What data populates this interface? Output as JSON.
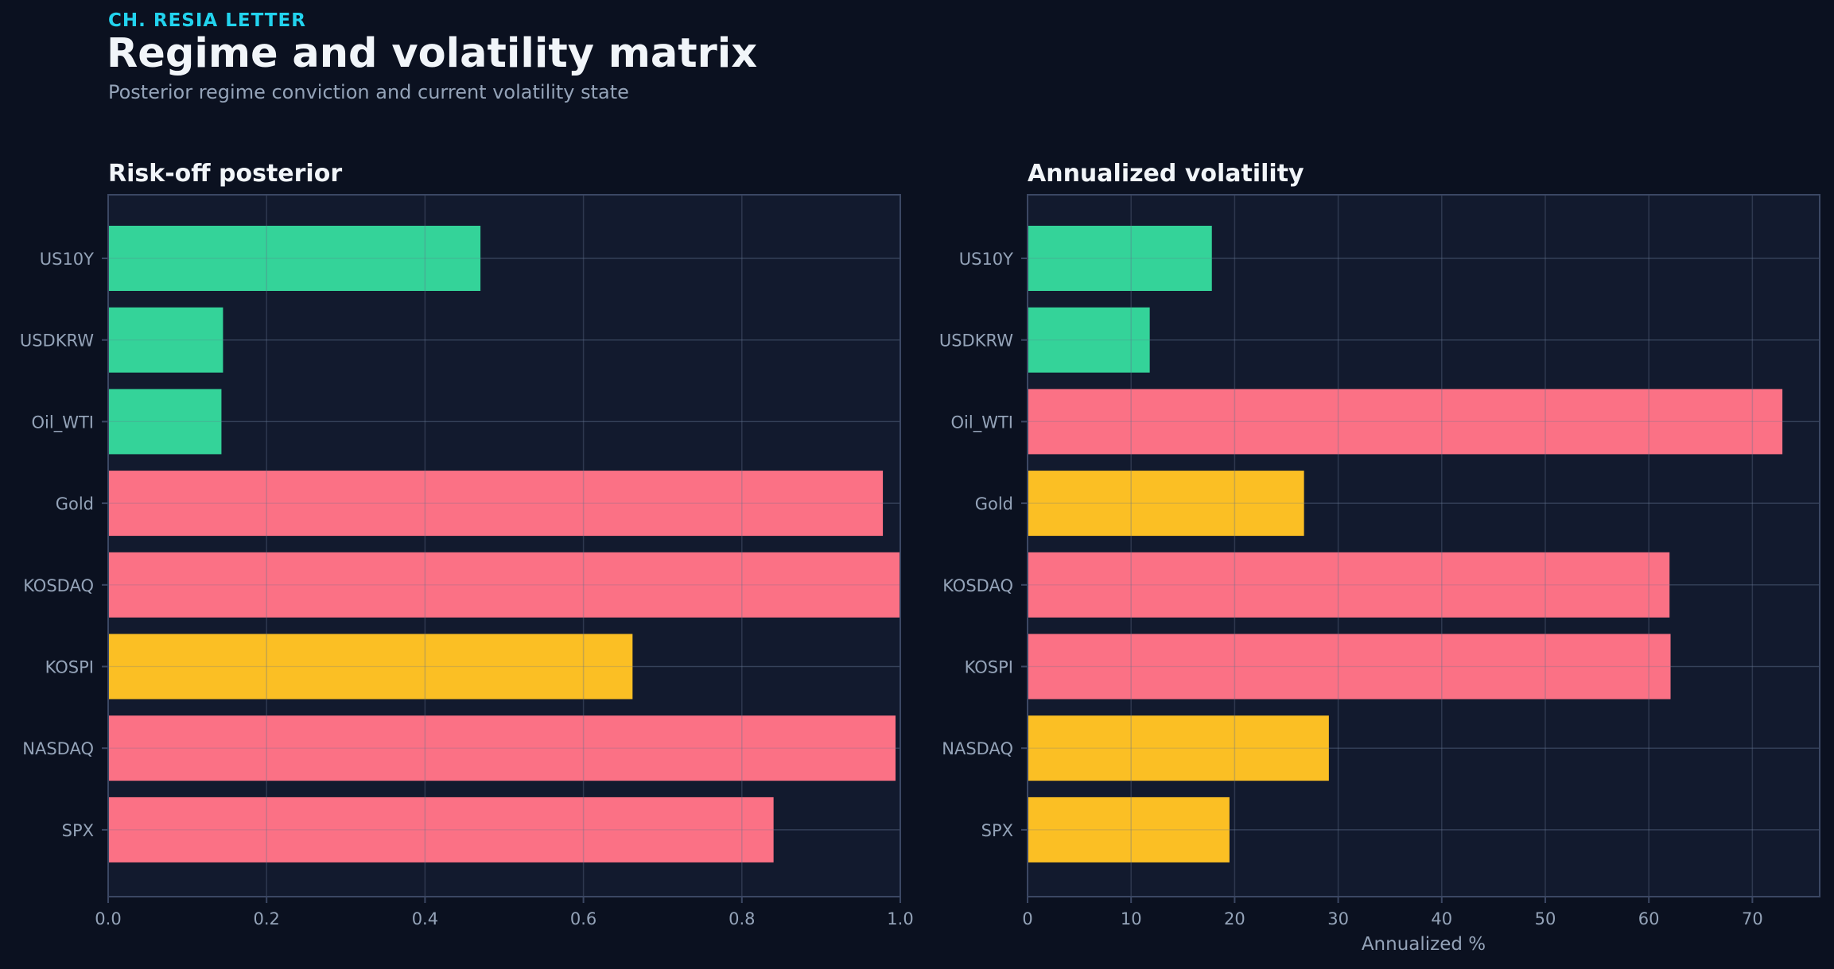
{
  "header": {
    "kicker": "CH. RESIA LETTER",
    "title": "Regime and volatility matrix",
    "subtitle": "Posterior regime conviction and current volatility state"
  },
  "colors": {
    "background": "#0b1120",
    "plot_bg": "#121a2e",
    "green": "#34d399",
    "red": "#fb7185",
    "yellow": "#fbbf24",
    "grid": "#27324a",
    "axis": "#3b4763",
    "tick_text": "#94a3b8"
  },
  "chart_data": [
    {
      "type": "bar",
      "orientation": "horizontal",
      "title": "Risk-off posterior",
      "xlabel": "",
      "ylabel": "",
      "categories": [
        "US10Y",
        "USDKRW",
        "Oil_WTI",
        "Gold",
        "KOSDAQ",
        "KOSPI",
        "NASDAQ",
        "SPX"
      ],
      "values": [
        0.47,
        0.145,
        0.143,
        0.978,
        1.0,
        0.662,
        0.994,
        0.84
      ],
      "bar_colors": [
        "green",
        "green",
        "green",
        "red",
        "red",
        "yellow",
        "red",
        "red"
      ],
      "xlim": [
        0,
        1.0
      ],
      "xticks": [
        "0.0",
        "0.2",
        "0.4",
        "0.6",
        "0.8",
        "1.0"
      ],
      "xtick_values": [
        0,
        0.2,
        0.4,
        0.6,
        0.8,
        1.0
      ],
      "grid": true
    },
    {
      "type": "bar",
      "orientation": "horizontal",
      "title": "Annualized volatility",
      "xlabel": "Annualized %",
      "ylabel": "",
      "categories": [
        "US10Y",
        "USDKRW",
        "Oil_WTI",
        "Gold",
        "KOSDAQ",
        "KOSPI",
        "NASDAQ",
        "SPX"
      ],
      "values": [
        17.8,
        11.8,
        72.9,
        26.7,
        62.0,
        62.1,
        29.1,
        19.5
      ],
      "bar_colors": [
        "green",
        "green",
        "red",
        "yellow",
        "red",
        "red",
        "yellow",
        "yellow"
      ],
      "xlim": [
        0,
        76.5
      ],
      "xticks": [
        "0",
        "10",
        "20",
        "30",
        "40",
        "50",
        "60",
        "70"
      ],
      "xtick_values": [
        0,
        10,
        20,
        30,
        40,
        50,
        60,
        70
      ],
      "grid": true
    }
  ]
}
